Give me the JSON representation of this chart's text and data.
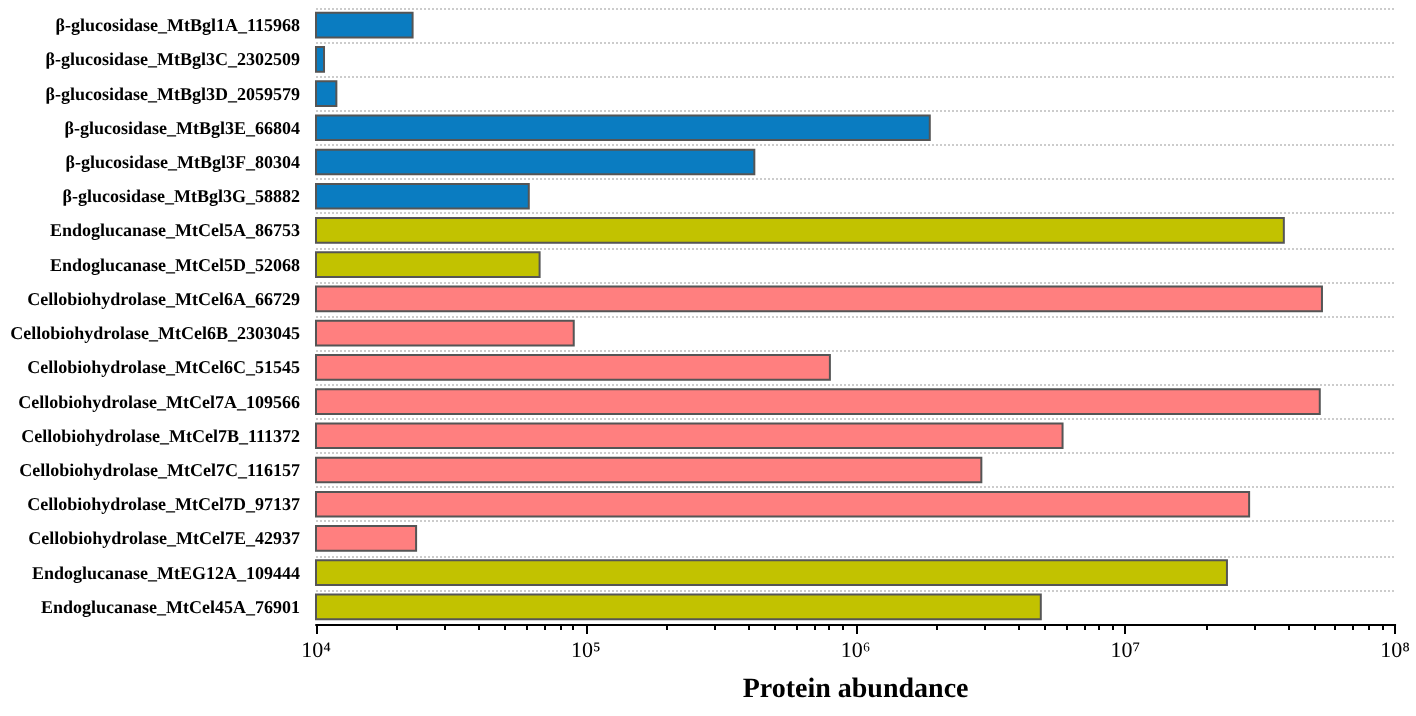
{
  "chart_data": {
    "type": "bar",
    "orientation": "horizontal",
    "log": "x",
    "xlabel": "Protein abundance",
    "categories": [
      "β-glucosidase_MtBgl1A_115968",
      "β-glucosidase_MtBgl3C_2302509",
      "β-glucosidase_MtBgl3D_2059579",
      "β-glucosidase_MtBgl3E_66804",
      "β-glucosidase_MtBgl3F_80304",
      "β-glucosidase_MtBgl3G_58882",
      "Endoglucanase_MtCel5A_86753",
      "Endoglucanase_MtCel5D_52068",
      "Cellobiohydrolase_MtCel6A_66729",
      "Cellobiohydrolase_MtCel6B_2303045",
      "Cellobiohydrolase_MtCel6C_51545",
      "Cellobiohydrolase_MtCel7A_109566",
      "Cellobiohydrolase_MtCel7B_111372",
      "Cellobiohydrolase_MtCel7C_116157",
      "Cellobiohydrolase_MtCel7D_97137",
      "Cellobiohydrolase_MtCel7E_42937",
      "Endoglucanase_MtEG12A_109444",
      "Endoglucanase_MtCel45A_76901"
    ],
    "values": [
      23000,
      10800,
      12000,
      1900000,
      425000,
      62000,
      39000000,
      68000,
      54000000,
      91000,
      810000,
      53000000,
      5900000,
      2950000,
      29000000,
      23700,
      24000000,
      4900000
    ],
    "colors": [
      "#0a7cc1",
      "#0a7cc1",
      "#0a7cc1",
      "#0a7cc1",
      "#0a7cc1",
      "#0a7cc1",
      "#c2c200",
      "#c2c200",
      "#ff7f7f",
      "#ff7f7f",
      "#ff7f7f",
      "#ff7f7f",
      "#ff7f7f",
      "#ff7f7f",
      "#ff7f7f",
      "#ff7f7f",
      "#c2c200",
      "#c2c200"
    ],
    "xlim": [
      10000,
      100000000
    ],
    "xticks": [
      {
        "value": 10000,
        "label": "10⁴"
      },
      {
        "value": 100000,
        "label": "10⁵"
      },
      {
        "value": 1000000,
        "label": "10⁶"
      },
      {
        "value": 10000000,
        "label": "10⁷"
      },
      {
        "value": 100000000,
        "label": "10⁸"
      }
    ],
    "grid": "y"
  }
}
